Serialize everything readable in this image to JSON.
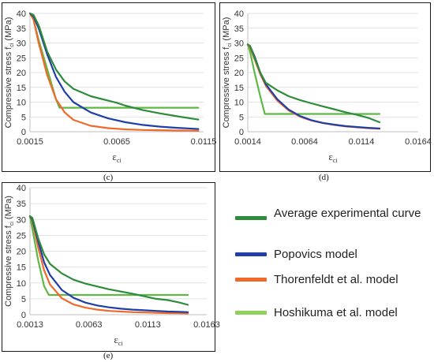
{
  "legend": {
    "items": [
      {
        "label": "Average experimental curve",
        "color": "#2e8b3a"
      },
      {
        "label": "Popovics model",
        "color": "#1f3fa6"
      },
      {
        "label": "Thorenfeldt et al. model",
        "color": "#ef6a2a"
      },
      {
        "label": "Hoshikuma et al. model",
        "color": "#8fd05a"
      }
    ]
  },
  "chart_data": [
    {
      "panel": "(c)",
      "type": "line",
      "ylabel": "Compressive stress f_ci (MPa)",
      "ylabel_main": "Compressive stress f",
      "ylabel_sub": "ci",
      "ylabel_unit": " (MPa)",
      "xlabel_main": "ε",
      "xlabel_sub": "ci",
      "xticks": [
        "0.0015",
        "0.0065",
        "0.0115"
      ],
      "xlim": [
        0.0015,
        0.0115
      ],
      "ylim": [
        0,
        40
      ],
      "yticks": [
        0,
        5,
        10,
        15,
        20,
        25,
        30,
        35,
        40
      ],
      "grid": true,
      "series": [
        {
          "name": "Average experimental curve",
          "color": "#2e8b3a",
          "x": [
            0.0015,
            0.0017,
            0.002,
            0.0025,
            0.003,
            0.0035,
            0.004,
            0.005,
            0.006,
            0.0065,
            0.007,
            0.008,
            0.009,
            0.01,
            0.011,
            0.0112
          ],
          "y": [
            40,
            39.5,
            36,
            27,
            21,
            17,
            14.5,
            12,
            10.5,
            9.8,
            8.8,
            7.3,
            6.2,
            5.2,
            4.3,
            4.1
          ]
        },
        {
          "name": "Popovics model",
          "color": "#1f3fa6",
          "x": [
            0.0015,
            0.0017,
            0.002,
            0.0025,
            0.003,
            0.0035,
            0.004,
            0.005,
            0.006,
            0.007,
            0.008,
            0.009,
            0.01,
            0.011,
            0.0112
          ],
          "y": [
            40,
            39,
            35,
            26,
            18.5,
            13.5,
            10,
            6.5,
            4.5,
            3.2,
            2.3,
            1.7,
            1.3,
            1.0,
            0.9
          ]
        },
        {
          "name": "Thorenfeldt et al. model",
          "color": "#ef6a2a",
          "x": [
            0.0015,
            0.0017,
            0.002,
            0.0025,
            0.003,
            0.0035,
            0.004,
            0.005,
            0.006,
            0.007,
            0.008,
            0.009,
            0.01,
            0.011,
            0.0112
          ],
          "y": [
            40,
            38,
            30,
            19,
            11,
            6.5,
            4.0,
            2.0,
            1.2,
            0.8,
            0.6,
            0.5,
            0.4,
            0.35,
            0.3
          ]
        },
        {
          "name": "Hoshikuma et al. model",
          "color": "#5fb844",
          "x": [
            0.0015,
            0.0017,
            0.002,
            0.0025,
            0.003,
            0.0032,
            0.0112
          ],
          "y": [
            40,
            38,
            31,
            21,
            11,
            8.1,
            8.1
          ]
        }
      ]
    },
    {
      "panel": "(d)",
      "type": "line",
      "ylabel": "Compressive stress f_ci (MPa)",
      "ylabel_main": "Compressive stress f",
      "ylabel_sub": "ci",
      "ylabel_unit": " (MPa)",
      "xlabel_main": "ε",
      "xlabel_sub": "ci",
      "xticks": [
        "0.0014",
        "0.0064",
        "0.0114",
        "0.0164"
      ],
      "xlim": [
        0.0014,
        0.0164
      ],
      "ylim": [
        0,
        40
      ],
      "yticks": [
        0,
        5,
        10,
        15,
        20,
        25,
        30,
        35,
        40
      ],
      "grid": true,
      "series": [
        {
          "name": "Average experimental curve",
          "color": "#2e8b3a",
          "x": [
            0.0014,
            0.0016,
            0.002,
            0.0025,
            0.003,
            0.004,
            0.005,
            0.006,
            0.007,
            0.008,
            0.009,
            0.01,
            0.011,
            0.012,
            0.013
          ],
          "y": [
            29.5,
            29,
            25,
            20,
            16.5,
            14,
            12,
            10.7,
            9.6,
            8.6,
            7.6,
            6.6,
            5.7,
            4.7,
            3.2
          ]
        },
        {
          "name": "Popovics model",
          "color": "#1f3fa6",
          "x": [
            0.0014,
            0.0016,
            0.002,
            0.0025,
            0.003,
            0.004,
            0.005,
            0.006,
            0.007,
            0.008,
            0.009,
            0.01,
            0.011,
            0.012,
            0.013
          ],
          "y": [
            29.5,
            29,
            25.5,
            20,
            16,
            11,
            7.5,
            5.3,
            3.9,
            3.0,
            2.4,
            1.9,
            1.6,
            1.3,
            1.1
          ]
        },
        {
          "name": "Thorenfeldt et al. model",
          "color": "#ef6a2a",
          "x": [
            0.0014,
            0.0016,
            0.002,
            0.0025,
            0.003,
            0.004,
            0.005,
            0.006,
            0.007,
            0.008,
            0.009,
            0.01,
            0.011,
            0.012,
            0.013
          ],
          "y": [
            29.5,
            28.5,
            24.5,
            19.5,
            15.5,
            10.5,
            7.2,
            5.1,
            3.8,
            2.9,
            2.3,
            1.8,
            1.5,
            1.2,
            1.0
          ]
        },
        {
          "name": "Hoshikuma et al. model",
          "color": "#5fb844",
          "x": [
            0.0014,
            0.0016,
            0.002,
            0.0025,
            0.0029,
            0.013
          ],
          "y": [
            29.5,
            27,
            20,
            12,
            6,
            6
          ]
        }
      ]
    },
    {
      "panel": "(e)",
      "type": "line",
      "ylabel": "Compressive stress f_ci (MPa)",
      "ylabel_main": "Compressive stress f",
      "ylabel_sub": "ci",
      "ylabel_unit": " (MPa)",
      "xlabel_main": "ε",
      "xlabel_sub": "ci",
      "xticks": [
        "0.0013",
        "0.0063",
        "0.0113",
        "0.0163"
      ],
      "xlim": [
        0.0013,
        0.0163
      ],
      "ylim": [
        0,
        40
      ],
      "yticks": [
        0,
        5,
        10,
        15,
        20,
        25,
        30,
        35,
        40
      ],
      "grid": true,
      "series": [
        {
          "name": "Average experimental curve",
          "color": "#2e8b3a",
          "x": [
            0.0013,
            0.0015,
            0.002,
            0.0025,
            0.003,
            0.004,
            0.005,
            0.006,
            0.007,
            0.008,
            0.009,
            0.01,
            0.011,
            0.012,
            0.013,
            0.014,
            0.0147
          ],
          "y": [
            31,
            30.5,
            24,
            19,
            16,
            13,
            11,
            9.8,
            8.9,
            8.0,
            7.3,
            6.6,
            5.8,
            5.0,
            4.6,
            3.8,
            3.1
          ]
        },
        {
          "name": "Popovics model",
          "color": "#1f3fa6",
          "x": [
            0.0013,
            0.0015,
            0.002,
            0.0025,
            0.003,
            0.004,
            0.005,
            0.006,
            0.007,
            0.008,
            0.009,
            0.01,
            0.011,
            0.012,
            0.013,
            0.014,
            0.0147
          ],
          "y": [
            31,
            30,
            23,
            16.5,
            12.5,
            7.8,
            5.3,
            3.8,
            2.9,
            2.3,
            1.9,
            1.6,
            1.4,
            1.2,
            1.0,
            0.9,
            0.8
          ]
        },
        {
          "name": "Thorenfeldt et al. model",
          "color": "#ef6a2a",
          "x": [
            0.0013,
            0.0015,
            0.002,
            0.0025,
            0.003,
            0.004,
            0.005,
            0.006,
            0.007,
            0.008,
            0.009,
            0.01,
            0.011,
            0.012,
            0.013,
            0.014,
            0.0147
          ],
          "y": [
            31,
            29.5,
            21,
            14,
            9.5,
            5.2,
            3.2,
            2.2,
            1.6,
            1.2,
            1.0,
            0.8,
            0.7,
            0.6,
            0.5,
            0.45,
            0.4
          ]
        },
        {
          "name": "Hoshikuma et al. model",
          "color": "#5fb844",
          "x": [
            0.0013,
            0.0015,
            0.002,
            0.0025,
            0.0029,
            0.0147
          ],
          "y": [
            31,
            27,
            17,
            9,
            6.2,
            6.2
          ]
        }
      ]
    }
  ]
}
